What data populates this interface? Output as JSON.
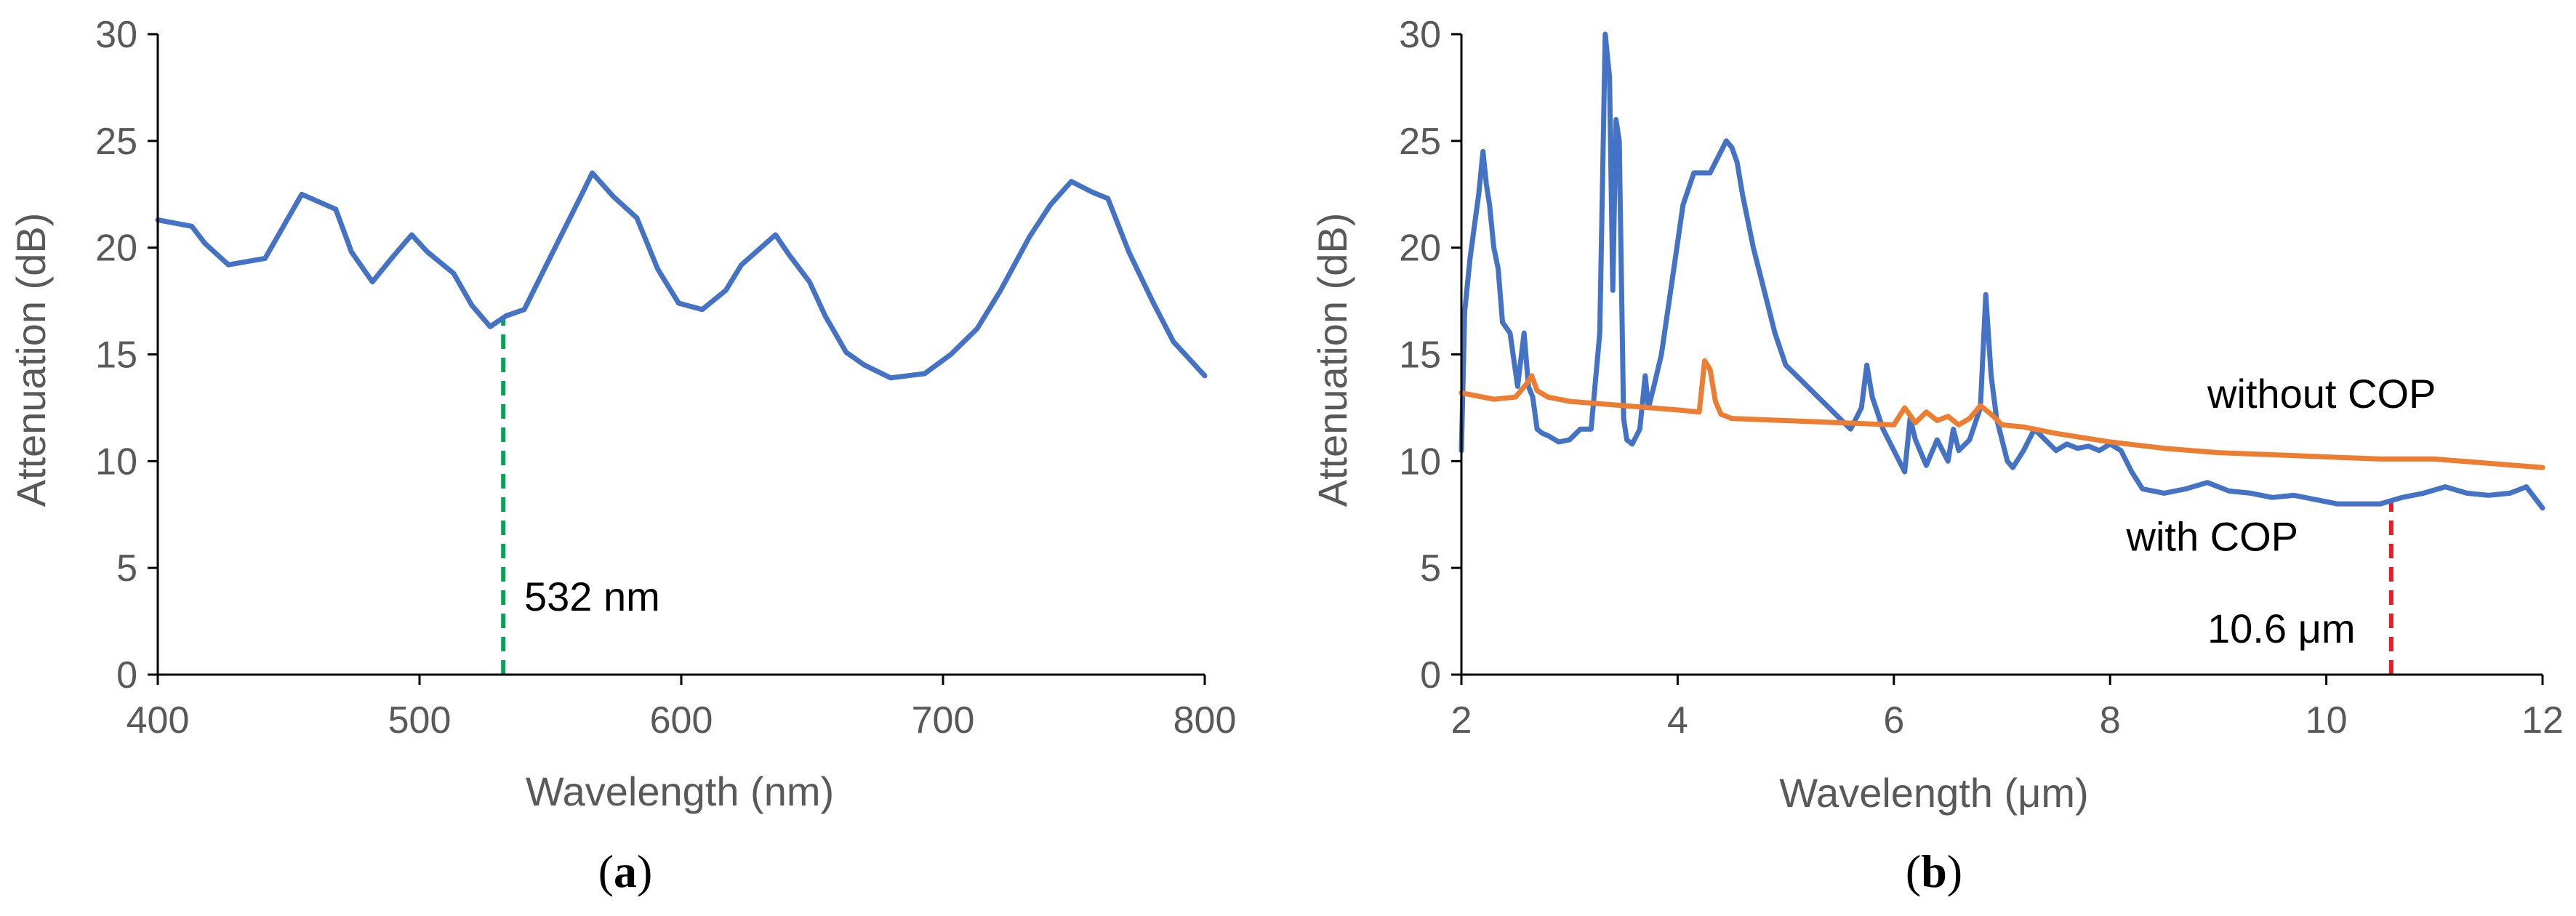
{
  "chart_data": [
    {
      "type": "line",
      "panel_label_open": "(",
      "panel_label_letter": "a",
      "panel_label_close": ")",
      "xlabel": "Wavelength (nm)",
      "ylabel": "Attenuation (dB)",
      "xlim": [
        400,
        800
      ],
      "ylim": [
        0,
        30
      ],
      "xticks": [
        400,
        500,
        600,
        700,
        800
      ],
      "yticks": [
        0,
        5,
        10,
        15,
        20,
        25,
        30
      ],
      "series": [
        {
          "name": "attenuation",
          "color": "#4472c4",
          "x": [
            400,
            413,
            418,
            427,
            441,
            455,
            468,
            474,
            482,
            490,
            497,
            503,
            513,
            520,
            527,
            533,
            540,
            553,
            562,
            566,
            574,
            583,
            591,
            599,
            608,
            617,
            623,
            636,
            641,
            649,
            655,
            663,
            670,
            680,
            693,
            703,
            713,
            722,
            733,
            741,
            749,
            757,
            763,
            771,
            780,
            788,
            800
          ],
          "y": [
            21.3,
            21.0,
            20.2,
            19.2,
            19.5,
            22.5,
            21.8,
            19.8,
            18.4,
            19.6,
            20.6,
            19.8,
            18.8,
            17.3,
            16.3,
            16.8,
            17.1,
            20.3,
            22.5,
            23.5,
            22.4,
            21.4,
            19.0,
            17.4,
            17.1,
            18.0,
            19.2,
            20.6,
            19.7,
            18.4,
            16.8,
            15.1,
            14.5,
            13.9,
            14.1,
            15.0,
            16.2,
            18.0,
            20.5,
            22.0,
            23.1,
            22.6,
            22.3,
            19.8,
            17.5,
            15.6,
            14.0
          ]
        }
      ],
      "marker_line": {
        "x": 532,
        "color": "#00a651"
      },
      "annotations": [
        {
          "text": "532 nm",
          "x": 540,
          "y": 3.0
        }
      ]
    },
    {
      "type": "line",
      "panel_label_open": "(",
      "panel_label_letter": "b",
      "panel_label_close": ")",
      "xlabel": "Wavelength (μm)",
      "ylabel": "Attenuation (dB)",
      "xlim": [
        2,
        12
      ],
      "ylim": [
        0,
        30
      ],
      "xticks": [
        2,
        4,
        6,
        8,
        10,
        12
      ],
      "yticks": [
        0,
        5,
        10,
        15,
        20,
        25,
        30
      ],
      "series": [
        {
          "name": "with COP",
          "color": "#4472c4",
          "x": [
            2.0,
            2.03,
            2.08,
            2.12,
            2.16,
            2.2,
            2.23,
            2.26,
            2.3,
            2.34,
            2.38,
            2.45,
            2.52,
            2.58,
            2.62,
            2.66,
            2.7,
            2.75,
            2.8,
            2.9,
            3.0,
            3.1,
            3.2,
            3.28,
            3.33,
            3.37,
            3.4,
            3.43,
            3.46,
            3.5,
            3.53,
            3.58,
            3.65,
            3.7,
            3.73,
            3.78,
            3.85,
            3.95,
            4.05,
            4.15,
            4.25,
            4.3,
            4.35,
            4.4,
            4.45,
            4.5,
            4.55,
            4.6,
            4.7,
            4.8,
            4.9,
            5.0,
            5.1,
            5.2,
            5.3,
            5.4,
            5.5,
            5.6,
            5.7,
            5.75,
            5.8,
            5.9,
            6.0,
            6.1,
            6.15,
            6.2,
            6.3,
            6.4,
            6.5,
            6.55,
            6.6,
            6.7,
            6.8,
            6.85,
            6.9,
            6.95,
            7.0,
            7.05,
            7.1,
            7.2,
            7.3,
            7.4,
            7.5,
            7.6,
            7.7,
            7.8,
            7.9,
            8.0,
            8.1,
            8.2,
            8.3,
            8.5,
            8.7,
            8.9,
            9.1,
            9.3,
            9.5,
            9.7,
            9.9,
            10.1,
            10.3,
            10.5,
            10.7,
            10.9,
            11.1,
            11.3,
            11.5,
            11.7,
            11.85,
            12.0
          ],
          "y": [
            10.5,
            17.0,
            19.5,
            21.0,
            22.5,
            24.5,
            23.0,
            22.0,
            20.0,
            19.0,
            16.5,
            16.0,
            13.5,
            16.0,
            13.5,
            13.0,
            11.5,
            11.3,
            11.2,
            10.9,
            11.0,
            11.5,
            11.5,
            16.0,
            30.0,
            28.0,
            18.0,
            26.0,
            25.0,
            12.0,
            11.0,
            10.8,
            11.5,
            14.0,
            12.5,
            13.5,
            15.0,
            18.5,
            22.0,
            23.5,
            23.5,
            23.5,
            24.0,
            24.5,
            25.0,
            24.7,
            24.0,
            22.5,
            20.0,
            18.0,
            16.0,
            14.5,
            14.0,
            13.5,
            13.0,
            12.5,
            12.0,
            11.5,
            12.5,
            14.5,
            13.0,
            11.5,
            10.5,
            9.5,
            12.0,
            11.0,
            9.8,
            11.0,
            10.0,
            11.5,
            10.5,
            11.0,
            12.5,
            17.8,
            14.0,
            12.0,
            11.0,
            10.0,
            9.7,
            10.5,
            11.5,
            11.0,
            10.5,
            10.8,
            10.6,
            10.7,
            10.5,
            10.8,
            10.5,
            9.5,
            8.7,
            8.5,
            8.7,
            9.0,
            8.6,
            8.5,
            8.3,
            8.4,
            8.2,
            8.0,
            8.0,
            8.0,
            8.3,
            8.5,
            8.8,
            8.5,
            8.4,
            8.5,
            8.8,
            7.8
          ]
        },
        {
          "name": "without COP",
          "color": "#ed7d31",
          "x": [
            2.0,
            2.3,
            2.5,
            2.6,
            2.65,
            2.7,
            2.8,
            3.0,
            3.5,
            4.0,
            4.2,
            4.25,
            4.3,
            4.35,
            4.4,
            4.5,
            5.0,
            5.5,
            6.0,
            6.1,
            6.2,
            6.3,
            6.4,
            6.5,
            6.6,
            6.7,
            6.8,
            6.9,
            7.0,
            7.2,
            7.5,
            8.0,
            8.5,
            9.0,
            9.5,
            10.0,
            10.5,
            11.0,
            11.5,
            12.0
          ],
          "y": [
            13.2,
            12.9,
            13.0,
            13.6,
            14.0,
            13.3,
            13.0,
            12.8,
            12.6,
            12.4,
            12.3,
            14.7,
            14.3,
            12.8,
            12.2,
            12.0,
            11.9,
            11.8,
            11.7,
            12.5,
            11.8,
            12.3,
            11.9,
            12.1,
            11.7,
            12.0,
            12.6,
            12.2,
            11.7,
            11.6,
            11.3,
            10.9,
            10.6,
            10.4,
            10.3,
            10.2,
            10.1,
            10.1,
            9.9,
            9.7
          ]
        }
      ],
      "marker_line": {
        "x": 10.6,
        "color": "#e81c24"
      },
      "annotations": [
        {
          "text": "without COP",
          "x": 8.9,
          "y": 12.5
        },
        {
          "text": "with COP",
          "x": 8.15,
          "y": 5.8
        },
        {
          "text": "10.6 μm",
          "x": 8.9,
          "y": 1.5
        }
      ]
    }
  ]
}
